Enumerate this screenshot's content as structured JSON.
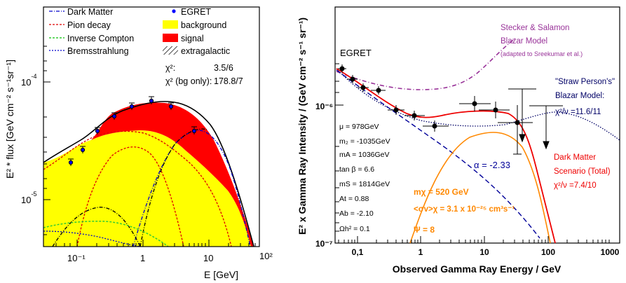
{
  "left_panel": {
    "ylabel": "E² * flux [GeV cm⁻² s⁻¹sr⁻¹]",
    "xlabel": "E [GeV]",
    "yticks": [
      {
        "text": "10",
        "sup": "-4"
      },
      {
        "text": "10",
        "sup": "-5"
      }
    ],
    "xticks": [
      "10⁻¹",
      "1",
      "10",
      "10²"
    ],
    "legend": {
      "dark_matter": "Dark Matter",
      "pion_decay": "Pion decay",
      "inverse_compton": "Inverse Compton",
      "bremsstrahlung": "Bremsstrahlung",
      "egret": "EGRET",
      "background": "background",
      "signal": "signal",
      "extragalactic": "extragalactic",
      "chi2_label": "χ²:",
      "chi2_value": "3.5/6",
      "chi2_bg_label": "χ² (bg only):",
      "chi2_bg_value": "178.8/7"
    },
    "colors": {
      "background": "#ffff00",
      "signal": "#ff0000",
      "dark_matter": "#0000cc",
      "pion": "#dd0000",
      "ic": "#33cc33",
      "brems": "#0000cc",
      "egret": "#0000ff"
    }
  },
  "right_panel": {
    "ylabel": "E² x Gamma Ray Intensity  /  (GeV cm⁻² s⁻¹ sr⁻¹)",
    "xlabel": "Observed Gamma Ray Energy / GeV",
    "yticks": [
      "10⁻⁶",
      "10⁻⁷"
    ],
    "xticks": [
      "0,1",
      "1",
      "10",
      "100",
      "1000"
    ],
    "egret": "EGRET",
    "stecker": [
      "Stecker & Salamon",
      "Blazar Model",
      "(adapted to Sreekumar et al.)"
    ],
    "straw": [
      "\"Straw Person's\"",
      "Blazar Model:",
      "χ²/ν =11.6/11"
    ],
    "dm": [
      "Dark Matter",
      "Scenario (Total)",
      "χ²/ν =7.4/10"
    ],
    "alpha": "α = -2.33",
    "params": [
      "μ = 978GeV",
      "m₂ = -1035GeV",
      "mA = 1036GeV",
      "tan β = 6.6",
      "mS = 1814GeV",
      "At = 0.88",
      "Ab = -2.10",
      "Ωh² = 0.1"
    ],
    "mchi": "mχ = 520 GeV",
    "sigmav": "<σv>χ = 3.1 x 10⁻²⁵ cm³s⁻¹",
    "psi": "Ψ = 8",
    "colors": {
      "stecker": "#993399",
      "straw": "#000066",
      "dm": "#ee0000",
      "orange": "#ff8800",
      "alpha": "#000099"
    }
  },
  "chart_data": [
    {
      "type": "area",
      "title": "",
      "xlabel": "E [GeV]",
      "ylabel": "E² * flux [GeV cm⁻² s⁻¹sr⁻¹]",
      "xscale": "log",
      "yscale": "log",
      "xlim": [
        0.04,
        100
      ],
      "ylim": [
        4e-06,
        0.0006
      ],
      "series": [
        {
          "name": "EGRET",
          "x": [
            0.085,
            0.12,
            0.2,
            0.35,
            0.7,
            1.5,
            3.0,
            6.5
          ],
          "y": [
            2.1e-05,
            2.6e-05,
            3.7e-05,
            5e-05,
            6.3e-05,
            7e-05,
            6.3e-05,
            3.7e-05
          ]
        },
        {
          "name": "background",
          "x": [
            0.04,
            0.1,
            0.3,
            0.6,
            1.0,
            2.0,
            5.0,
            10,
            30,
            50
          ],
          "y": [
            1.3e-05,
            2.3e-05,
            3.5e-05,
            3.7e-05,
            3.5e-05,
            2.7e-05,
            1.6e-05,
            9.5e-06,
            5.5e-06,
            4e-06
          ]
        },
        {
          "name": "signal",
          "x": [
            0.04,
            0.1,
            0.3,
            0.6,
            1.0,
            2.0,
            4.0,
            10,
            20,
            50
          ],
          "y": [
            1.3e-05,
            2.4e-05,
            4.5e-05,
            5.7e-05,
            6.2e-05,
            6.6e-05,
            5.8e-05,
            3.5e-05,
            1.7e-05,
            4e-06
          ]
        }
      ]
    },
    {
      "type": "line",
      "title": "",
      "xlabel": "Observed Gamma Ray Energy / GeV",
      "ylabel": "E² x Gamma Ray Intensity  /  (GeV cm⁻² s⁻¹ sr⁻¹)",
      "xscale": "log",
      "yscale": "log",
      "xlim": [
        0.05,
        1000
      ],
      "ylim": [
        1e-07,
        4e-06
      ],
      "series": [
        {
          "name": "EGRET",
          "x": [
            0.06,
            0.1,
            0.14,
            0.23,
            0.4,
            0.75,
            1.5,
            3.5,
            7,
            15
          ],
          "y": [
            1.9e-06,
            1.62e-06,
            1.42e-06,
            1.32e-06,
            9.6e-07,
            8.5e-07,
            7.2e-07,
            1.08e-06,
            9.6e-07,
            7.5e-07
          ]
        },
        {
          "name": "Dark Matter Scenario (Total)",
          "x": [
            0.06,
            0.1,
            0.3,
            0.7,
            1.5,
            3,
            8,
            15,
            30,
            60,
            100
          ],
          "y": [
            1.9e-06,
            1.55e-06,
            1.05e-06,
            8.5e-07,
            8.5e-07,
            9e-07,
            9.2e-07,
            8.5e-07,
            5e-07,
            2.2e-07,
            1e-07
          ]
        },
        {
          "name": "Stecker & Salamon Blazar Model",
          "x": [
            0.06,
            0.2,
            0.5,
            1,
            2,
            5,
            10,
            20
          ],
          "y": [
            1.8e-06,
            1.42e-06,
            1.35e-06,
            1.38e-06,
            1.55e-06,
            1.9e-06,
            2.4e-06,
            3.1e-06
          ]
        },
        {
          "name": "Straw Person's Blazar Model",
          "x": [
            0.06,
            0.5,
            1,
            3,
            10,
            30,
            60,
            150,
            400,
            1000
          ],
          "y": [
            1.9e-06,
            9.5e-07,
            8e-07,
            7e-07,
            7.3e-07,
            8.3e-07,
            9e-07,
            8.5e-07,
            6e-07,
            4e-07
          ]
        },
        {
          "name": "α = -2.33",
          "x": [
            0.06,
            0.3,
            1,
            3,
            10,
            30,
            50
          ],
          "y": [
            1.8e-06,
            9.5e-07,
            6e-07,
            4e-07,
            2.5e-07,
            1.5e-07,
            1.1e-07
          ]
        },
        {
          "name": "DM signal",
          "x": [
            2.5,
            5,
            10,
            15,
            20,
            30,
            50,
            80
          ],
          "y": [
            1.1e-07,
            3.5e-07,
            5.6e-07,
            6.2e-07,
            5.5e-07,
            3e-07,
            1.5e-07,
            1e-07
          ]
        }
      ]
    }
  ]
}
